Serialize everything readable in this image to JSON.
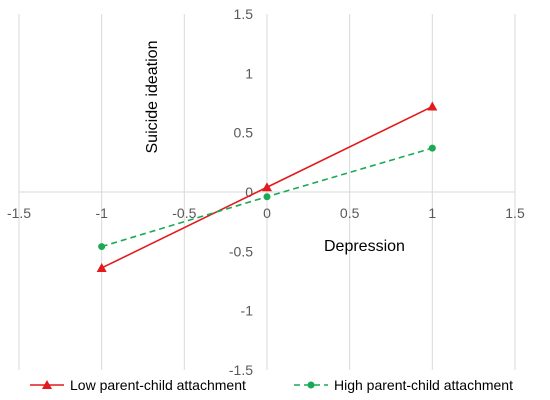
{
  "chart_data": {
    "type": "line",
    "xlabel": "Depression",
    "ylabel": "Suicide ideation",
    "xlim": [
      -1.5,
      1.5
    ],
    "ylim": [
      -1.5,
      1.5
    ],
    "xticks": [
      -1.5,
      -1,
      -0.5,
      0,
      0.5,
      1,
      1.5
    ],
    "yticks": [
      -1.5,
      -1,
      -0.5,
      0,
      0.5,
      1,
      1.5
    ],
    "xtick_labels": [
      "-1.5",
      "-1",
      "-0.5",
      "0",
      "0.5",
      "1",
      "1.5"
    ],
    "ytick_labels": [
      "-1.5",
      "-1",
      "-0.5",
      "0",
      "0.5",
      "1",
      "1.5"
    ],
    "grid": "vertical",
    "legend_position": "bottom",
    "series": [
      {
        "name": "Low parent-child attachment",
        "x": [
          -1,
          0,
          1
        ],
        "y": [
          -0.64,
          0.04,
          0.72
        ],
        "color": "#e3191c",
        "marker": "triangle",
        "dash": "solid"
      },
      {
        "name": "High parent-child attachment",
        "x": [
          -1,
          0,
          1
        ],
        "y": [
          -0.46,
          -0.04,
          0.37
        ],
        "color": "#1aaa55",
        "marker": "circle",
        "dash": "dashed"
      }
    ]
  }
}
